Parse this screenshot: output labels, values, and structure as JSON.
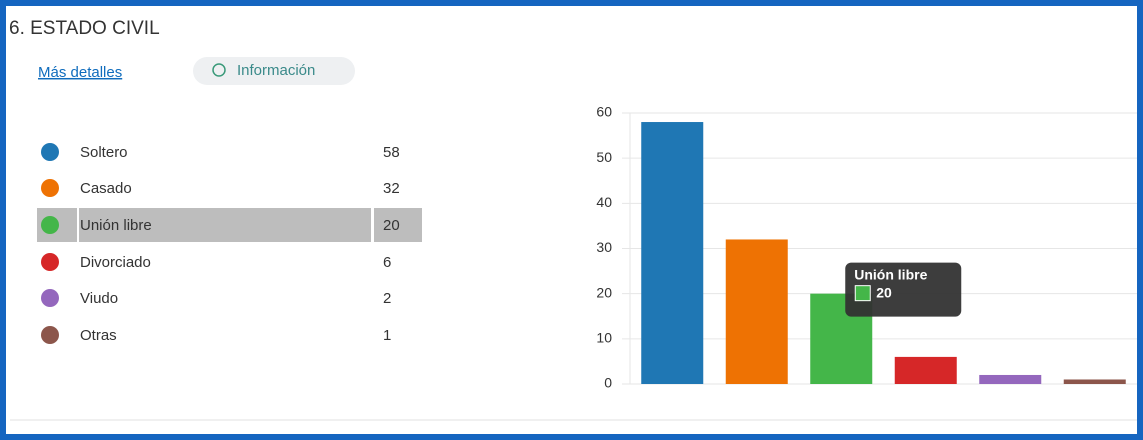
{
  "question": "6.  ESTADO CIVIL",
  "more_details": "Más detalles",
  "info": "Información",
  "chart_data": {
    "type": "bar",
    "categories": [
      "Soltero",
      "Casado",
      "Unión libre",
      "Divorciado",
      "Viudo",
      "Otras"
    ],
    "values": [
      58,
      32,
      20,
      6,
      2,
      1
    ],
    "colors": [
      "#1f77b4",
      "#ee7203",
      "#44b649",
      "#d62728",
      "#9467bd",
      "#8c564b"
    ],
    "ylim": [
      0,
      60
    ],
    "yticks": [
      0,
      10,
      20,
      30,
      40,
      50,
      60
    ],
    "grid": true,
    "highlight": 2
  }
}
